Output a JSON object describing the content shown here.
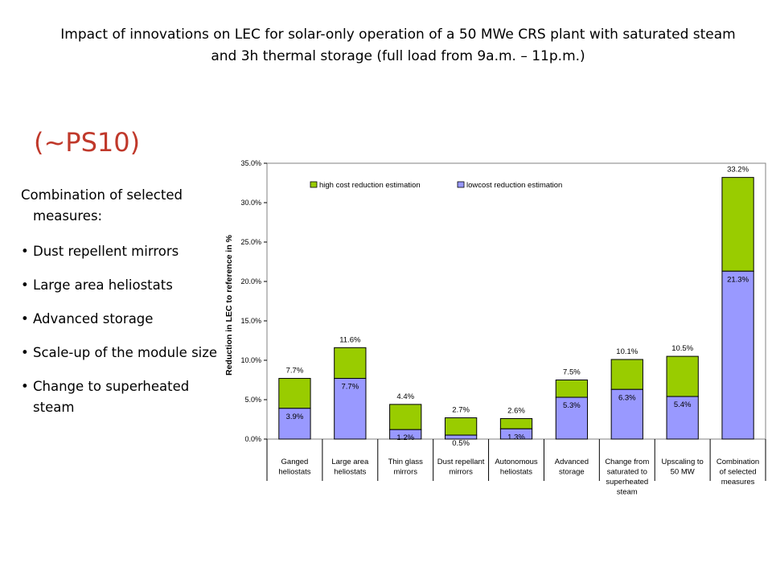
{
  "slide": {
    "title": "Impact of innovations on LEC for solar-only operation of a 50 MWe CRS  plant with saturated steam and 3h thermal storage (full load from 9a.m. – 11p.m.)",
    "subtitle": "(~PS10)",
    "intro": "Combination of selected measures:",
    "bullets": [
      "Dust repellent mirrors",
      "Large area heliostats",
      "Advanced storage",
      "Scale-up of the module size",
      "Change to superheated steam"
    ]
  },
  "colors": {
    "low": "#9999ff",
    "high": "#99cc00",
    "subtitle": "#c0392b"
  },
  "chart_data": {
    "type": "bar",
    "stacked": true,
    "ylabel": "Reduction in LEC to reference in %",
    "ylim": [
      0,
      35
    ],
    "yticks": [
      "0.0%",
      "5.0%",
      "10.0%",
      "15.0%",
      "20.0%",
      "25.0%",
      "30.0%",
      "35.0%"
    ],
    "legend_position": "top",
    "grid": false,
    "categories": [
      [
        "Ganged",
        "heliostats"
      ],
      [
        "Large area",
        "heliostats"
      ],
      [
        "Thin glass",
        "mirrors"
      ],
      [
        "Dust repellant",
        "mirrors"
      ],
      [
        "Autonomous",
        "heliostats"
      ],
      [
        "Advanced",
        "storage"
      ],
      [
        "Change from",
        "saturated to",
        "superheated",
        "steam"
      ],
      [
        "Upscaling to",
        "50 MW"
      ],
      [
        "Combination",
        "of selected",
        "measures"
      ]
    ],
    "series": [
      {
        "name": "lowcost reduction estimation",
        "values": [
          3.9,
          7.7,
          1.2,
          0.5,
          1.3,
          5.3,
          6.3,
          5.4,
          21.3
        ],
        "labels": [
          "3.9%",
          "7.7%",
          "1.2%",
          "0.5%",
          "1.3%",
          "5.3%",
          "6.3%",
          "5.4%",
          "21.3%"
        ]
      },
      {
        "name": "high cost reduction estimation",
        "totals": [
          7.7,
          11.6,
          4.4,
          2.7,
          2.6,
          7.5,
          10.1,
          10.5,
          33.2
        ],
        "labels": [
          "7.7%",
          "11.6%",
          "4.4%",
          "2.7%",
          "2.6%",
          "7.5%",
          "10.1%",
          "10.5%",
          "33.2%"
        ]
      }
    ]
  }
}
